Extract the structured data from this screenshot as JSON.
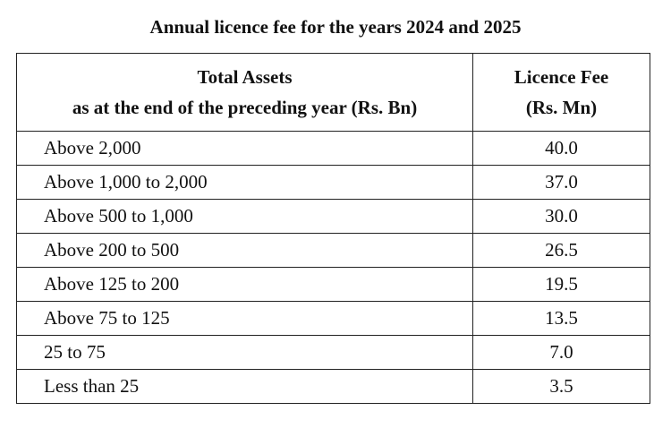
{
  "title": "Annual licence fee for the years 2024 and 2025",
  "table": {
    "header": {
      "assets_line1": "Total Assets",
      "assets_line2": "as at the end of the preceding year (Rs. Bn)",
      "fee_line1": "Licence Fee",
      "fee_line2": "(Rs. Mn)"
    },
    "rows": [
      {
        "band": "Above 2,000",
        "fee": "40.0"
      },
      {
        "band": "Above 1,000 to 2,000",
        "fee": "37.0"
      },
      {
        "band": "Above 500 to 1,000",
        "fee": "30.0"
      },
      {
        "band": "Above 200 to 500",
        "fee": "26.5"
      },
      {
        "band": "Above 125 to 200",
        "fee": "19.5"
      },
      {
        "band": "Above 75 to 125",
        "fee": "13.5"
      },
      {
        "band": "25 to 75",
        "fee": "7.0"
      },
      {
        "band": "Less than 25",
        "fee": "3.5"
      }
    ]
  }
}
